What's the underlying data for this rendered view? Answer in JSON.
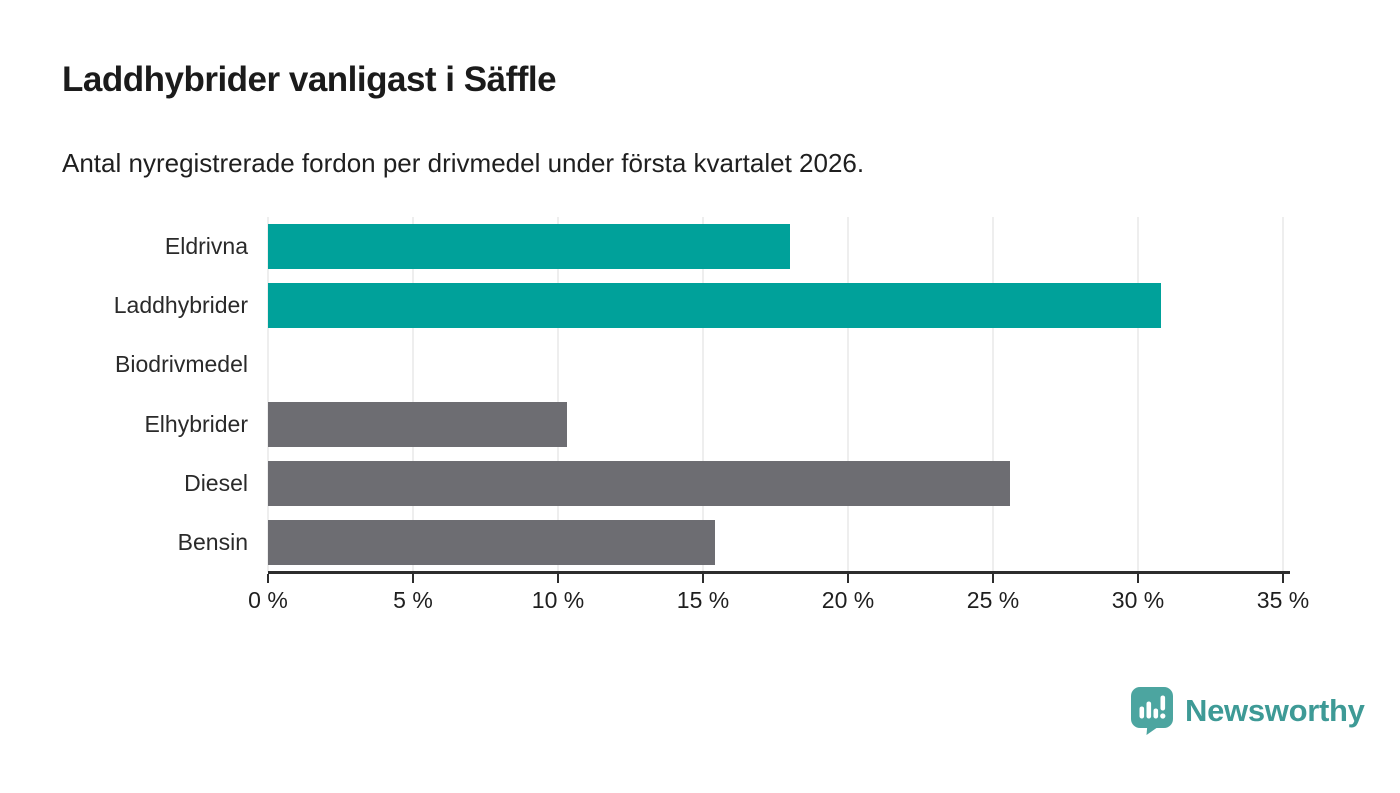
{
  "header": {
    "title": "Laddhybrider vanligast i Säffle",
    "subtitle": "Antal nyregistrerade fordon per drivmedel under första kvartalet 2026."
  },
  "chart_data": {
    "type": "bar",
    "orientation": "horizontal",
    "title": "Laddhybrider vanligast i Säffle",
    "subtitle": "Antal nyregistrerade fordon per drivmedel under första kvartalet 2026.",
    "categories": [
      "Eldrivna",
      "Laddhybrider",
      "Biodrivmedel",
      "Elhybrider",
      "Diesel",
      "Bensin"
    ],
    "values": [
      18.0,
      30.8,
      0,
      10.3,
      25.6,
      15.4
    ],
    "unit": "%",
    "bar_colors": [
      "#00a19a",
      "#00a19a",
      "#6d6d72",
      "#6d6d72",
      "#6d6d72",
      "#6d6d72"
    ],
    "highlight_color": "#00a19a",
    "default_color": "#6d6d72",
    "xlim": [
      0,
      35
    ],
    "x_ticks": [
      0,
      5,
      10,
      15,
      20,
      25,
      30,
      35
    ],
    "x_tick_labels": [
      "0 %",
      "5 %",
      "10 %",
      "15 %",
      "20 %",
      "25 %",
      "30 %",
      "35 %"
    ],
    "xlabel": "",
    "ylabel": "",
    "grid": true,
    "gridline_color": "#dedede",
    "axis_color": "#2d2d2d",
    "legend": "none"
  },
  "footer": {
    "brand_label": "Newsworthy",
    "brand_color": "#3e9a96",
    "logo_icon": "newsworthy-speech-bubble-bar-chart-icon",
    "logo_icon_color": "#4ca5a0"
  }
}
